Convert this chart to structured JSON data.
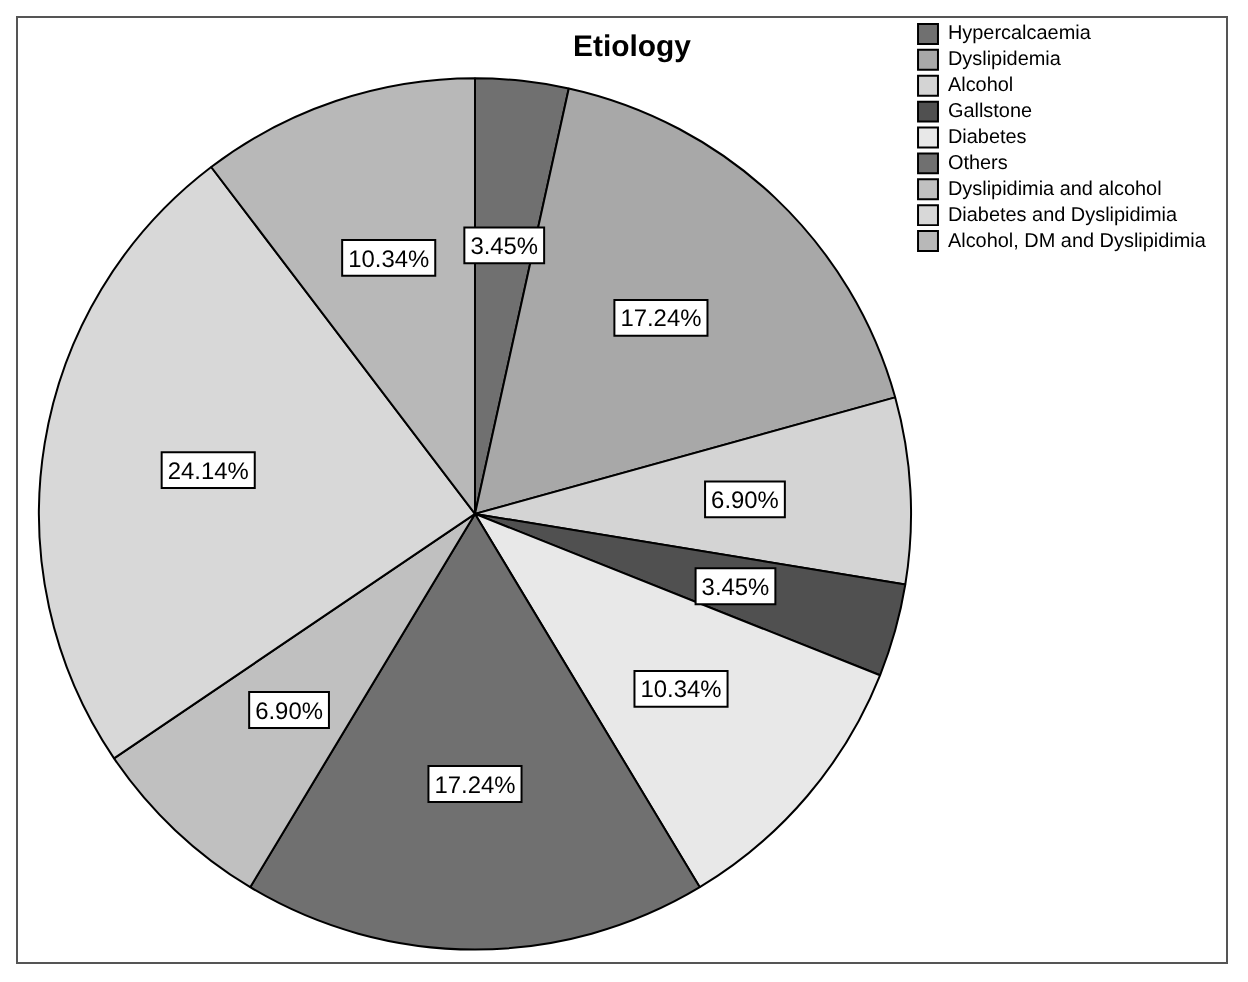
{
  "chart_data": {
    "type": "pie",
    "title": "Etiology",
    "categories": [
      "Hypercalcaemia",
      "Dyslipidemia",
      "Alcohol",
      "Gallstone",
      "Diabetes",
      "Others",
      "Dyslipidimia and alcohol",
      "Diabetes and Dyslipidimia",
      "Alcohol, DM and Dyslipidimia"
    ],
    "values": [
      3.45,
      17.24,
      6.9,
      3.45,
      10.34,
      17.24,
      6.9,
      24.14,
      10.34
    ],
    "value_labels": [
      "3.45%",
      "17.24%",
      "6.90%",
      "3.45%",
      "10.34%",
      "17.24%",
      "6.90%",
      "24.14%",
      "10.34%"
    ],
    "colors": [
      "#707070",
      "#a8a8a8",
      "#d4d4d4",
      "#505050",
      "#e8e8e8",
      "#707070",
      "#c0c0c0",
      "#d8d8d8",
      "#b8b8b8"
    ],
    "legend": "top right"
  }
}
